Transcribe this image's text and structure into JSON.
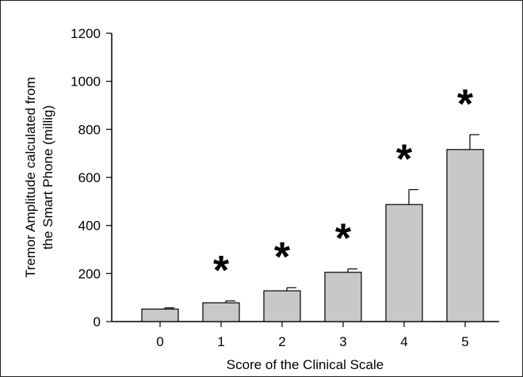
{
  "chart_data": {
    "type": "bar",
    "title": "",
    "xlabel": "Score of the Clinical Scale",
    "ylabel_lines": [
      "Tremor Amplitude calculated from",
      "the Smart Phone (millig)"
    ],
    "categories": [
      "0",
      "1",
      "2",
      "3",
      "4",
      "5"
    ],
    "values": [
      52,
      78,
      128,
      205,
      487,
      716
    ],
    "errors": [
      5,
      8,
      13,
      14,
      62,
      62
    ],
    "significance": [
      "",
      "*",
      "*",
      "*",
      "*",
      "*"
    ],
    "ylim": [
      0,
      1200
    ],
    "yticks": [
      "0",
      "200",
      "400",
      "600",
      "800",
      "1000",
      "1200"
    ],
    "grid": false,
    "colors": {
      "bar_fill": "#c8c8c8",
      "bar_stroke": "#000000"
    }
  }
}
